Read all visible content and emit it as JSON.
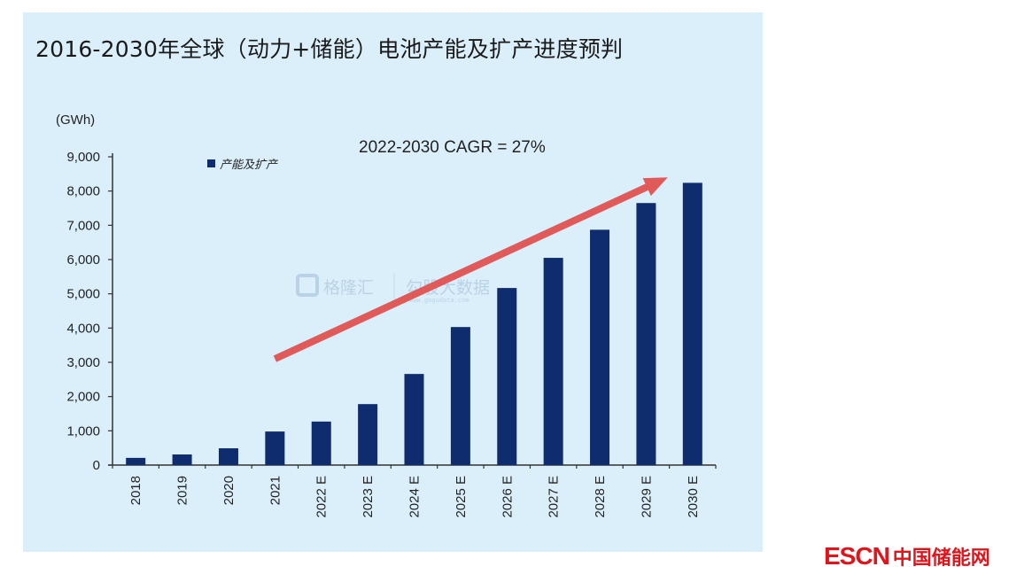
{
  "chart_data": {
    "type": "bar",
    "title": "2016-2030年全球（动力+储能）电池产能及扩产进度预判",
    "ylabel": "(GWh)",
    "xlabel": "",
    "ylim": [
      0,
      9000
    ],
    "yticks": [
      0,
      1000,
      2000,
      3000,
      4000,
      5000,
      6000,
      7000,
      8000,
      9000
    ],
    "ytick_labels": [
      "0",
      "1,000",
      "2,000",
      "3,000",
      "4,000",
      "5,000",
      "6,000",
      "7,000",
      "8,000",
      "9,000"
    ],
    "categories": [
      "2018",
      "2019",
      "2020",
      "2021",
      "2022 E",
      "2023 E",
      "2024 E",
      "2025 E",
      "2026 E",
      "2027 E",
      "2028 E",
      "2029 E",
      "2030 E"
    ],
    "series": [
      {
        "name": "产能及扩产",
        "color": "#0f2d6e",
        "values": [
          210,
          310,
          490,
          980,
          1270,
          1780,
          2660,
          4030,
          5170,
          6050,
          6870,
          7650,
          8240
        ]
      }
    ],
    "legend": {
      "position": "top-left",
      "label": "产能及扩产"
    },
    "grid": false,
    "annotation": {
      "text": "2022-2030 CAGR = 27%",
      "arrow": {
        "from_category": "2021",
        "from_value": 3100,
        "to_category": "2030 E",
        "to_value": 8400,
        "color": "#e05a5a"
      }
    },
    "watermark": {
      "brand": "格隆汇",
      "brand2": "勾股大数据",
      "url": "www.gogudata.com"
    }
  },
  "source_logo": {
    "latin": "ESCN",
    "chinese": "中国储能网",
    "color": "#e1141c"
  },
  "colors": {
    "background": "#dbeffb",
    "bar": "#0f2d6e",
    "arrow": "#e05a5a",
    "axis": "#333333"
  }
}
